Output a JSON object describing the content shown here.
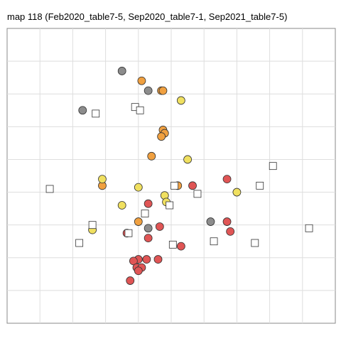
{
  "chart_data": {
    "type": "scatter",
    "title": "map 118 (Feb2020_table7-5, Sep2020_table7-1, Sep2021_table7-5)",
    "xlabel": "",
    "ylabel": "",
    "xlim": [
      0,
      10
    ],
    "ylim": [
      0,
      9
    ],
    "grid": true,
    "legend": "none",
    "colors": {
      "grey": "#8c8c8c",
      "orange": "#f0a040",
      "yellow": "#f0e060",
      "red": "#e05555",
      "square": "#ffffff",
      "stroke": "#333333"
    },
    "series": [
      {
        "marker": "circle",
        "color_key": "grey",
        "x": [
          3.5,
          4.3,
          2.3,
          6.2,
          4.3
        ],
        "y": [
          7.7,
          7.1,
          6.5,
          3.1,
          2.9
        ]
      },
      {
        "marker": "circle",
        "color_key": "orange",
        "x": [
          4.1,
          4.7,
          4.75,
          4.75,
          4.8,
          4.7,
          4.4,
          5.2,
          2.9,
          4.0
        ],
        "y": [
          7.4,
          7.1,
          7.1,
          5.9,
          5.8,
          5.7,
          5.1,
          4.2,
          4.2,
          3.1
        ]
      },
      {
        "marker": "circle",
        "color_key": "yellow",
        "x": [
          5.3,
          5.5,
          2.9,
          7.0,
          4.0,
          4.8,
          4.85,
          3.5,
          2.6
        ],
        "y": [
          6.8,
          5.0,
          4.4,
          4.0,
          4.15,
          3.9,
          3.7,
          3.6,
          2.85
        ]
      },
      {
        "marker": "circle",
        "color_key": "red",
        "x": [
          6.7,
          5.65,
          4.3,
          4.65,
          6.7,
          3.65,
          4.3,
          6.8,
          5.3,
          4.0,
          4.25,
          4.6,
          3.85,
          3.95,
          4.1,
          4.0,
          3.75
        ],
        "y": [
          4.4,
          4.2,
          3.65,
          2.95,
          3.1,
          2.75,
          2.6,
          2.8,
          2.35,
          1.95,
          1.95,
          1.95,
          1.9,
          1.7,
          1.7,
          1.6,
          1.3
        ]
      },
      {
        "marker": "square",
        "color_key": "square",
        "x": [
          3.9,
          2.7,
          4.05,
          8.1,
          1.3,
          7.7,
          5.1,
          5.8,
          4.95,
          4.2,
          2.6,
          3.7,
          9.2,
          2.2,
          6.3,
          5.05,
          7.55
        ],
        "y": [
          6.6,
          6.4,
          6.5,
          4.8,
          4.1,
          4.2,
          4.2,
          3.95,
          3.6,
          3.35,
          3.0,
          2.75,
          2.9,
          2.45,
          2.5,
          2.4,
          2.45
        ]
      }
    ]
  }
}
